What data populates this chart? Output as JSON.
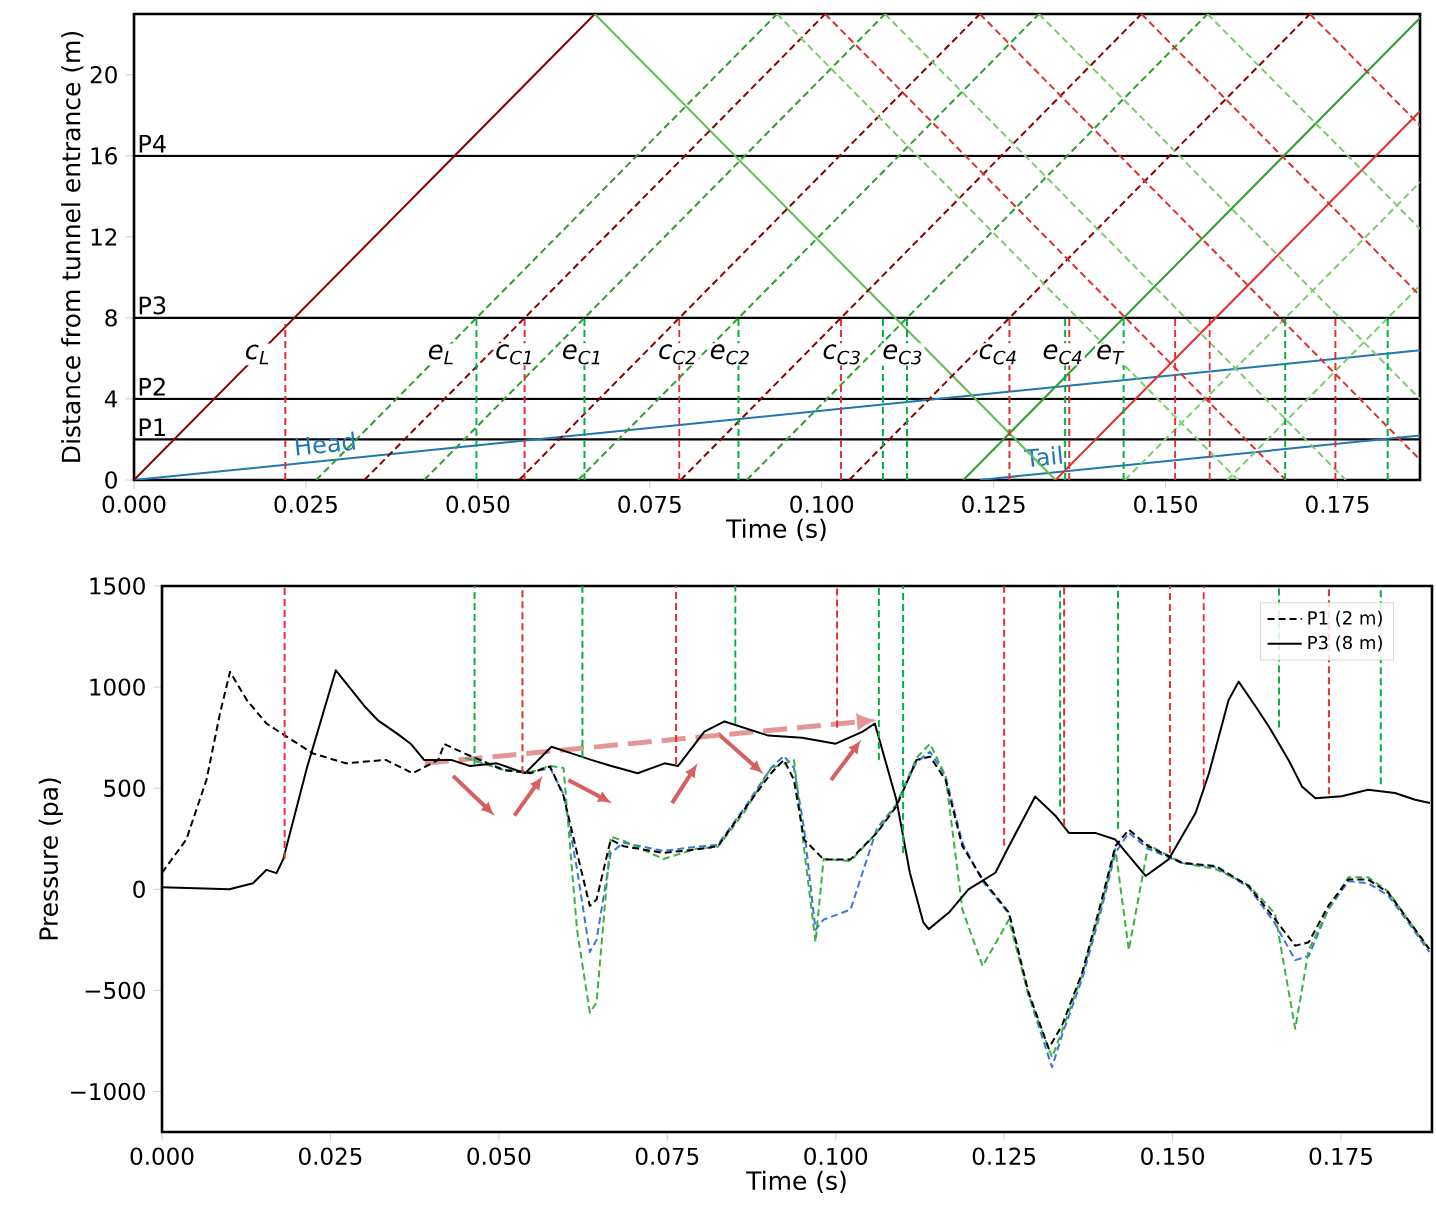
{
  "chart_data": [
    {
      "type": "line",
      "xlabel": "Time (s)",
      "ylabel": "Distance from tunnel entrance (m)",
      "xlim": [
        0,
        0.187
      ],
      "ylim": [
        0,
        23
      ],
      "xticks": [
        {
          "value": 0,
          "label": "0.000"
        },
        {
          "value": 0.025,
          "label": "0.025"
        },
        {
          "value": 0.05,
          "label": "0.050"
        },
        {
          "value": 0.075,
          "label": "0.075"
        },
        {
          "value": 0.1,
          "label": "0.100"
        },
        {
          "value": 0.125,
          "label": "0.125"
        },
        {
          "value": 0.15,
          "label": "0.150"
        },
        {
          "value": 0.175,
          "label": "0.175"
        }
      ],
      "yticks": [
        0,
        4,
        8,
        12,
        16,
        20
      ],
      "ref_lines": [
        {
          "axis": "y",
          "value": 2,
          "label": "P1",
          "color": "#000000"
        },
        {
          "axis": "y",
          "value": 4,
          "label": "P2",
          "color": "#000000"
        },
        {
          "axis": "y",
          "value": 8,
          "label": "P3",
          "color": "#000000"
        },
        {
          "axis": "y",
          "value": 16,
          "label": "P4",
          "color": "#000000"
        }
      ],
      "annotations": [
        "c$_{L}$",
        "e$_{L}$",
        "c$_{C1}$",
        "e$_{C1}$",
        "c$_{C2}$",
        "e$_{C2}$",
        "c$_{C3}$",
        "e$_{C3}$",
        "c$_{C4}$",
        "e$_{C4}$",
        "e$_{T}$"
      ],
      "series": [
        {
          "name": "Head",
          "color": "#1f77b4",
          "line_style": "solid",
          "x": [
            0,
            0.187
          ],
          "values": [
            0,
            6.4
          ]
        },
        {
          "name": "Tail",
          "color": "#1f77b4",
          "line_style": "solid",
          "x": [
            0.123,
            0.187
          ],
          "values": [
            0,
            2.2
          ]
        },
        {
          "color": "#8b0000",
          "line_style": "solid",
          "x": [
            0,
            0.067
          ],
          "values": [
            0,
            23
          ]
        },
        {
          "color": "#5cbf4f",
          "line_style": "solid",
          "x": [
            0.067,
            0.134
          ],
          "values": [
            23,
            0
          ]
        },
        {
          "color": "#2e9e2e",
          "line_style": "solid",
          "x": [
            0.1206,
            0.187
          ],
          "values": [
            0,
            22.8
          ]
        },
        {
          "color": "#e03030",
          "line_style": "solid",
          "x": [
            0.134,
            0.187
          ],
          "values": [
            0,
            18.2
          ]
        },
        {
          "color": "#2ca02c",
          "line_style": "dashed",
          "x": [
            0.0265,
            0.0935
          ],
          "values": [
            0,
            23
          ]
        },
        {
          "color": "#2ca02c",
          "line_style": "dashed",
          "x": [
            0.0422,
            0.1092
          ],
          "values": [
            0,
            23
          ]
        },
        {
          "color": "#2ca02c",
          "line_style": "dashed",
          "x": [
            0.0646,
            0.1316
          ],
          "values": [
            0,
            23
          ]
        },
        {
          "color": "#2ca02c",
          "line_style": "dashed",
          "x": [
            0.0891,
            0.1561
          ],
          "values": [
            0,
            23
          ]
        },
        {
          "color": "#8b0000",
          "line_style": "dashed",
          "x": [
            0.0335,
            0.1005
          ],
          "values": [
            0,
            23
          ]
        },
        {
          "color": "#8b0000",
          "line_style": "dashed",
          "x": [
            0.056,
            0.123
          ],
          "values": [
            0,
            23
          ]
        },
        {
          "color": "#8b0000",
          "line_style": "dashed",
          "x": [
            0.0795,
            0.1465
          ],
          "values": [
            0,
            23
          ]
        },
        {
          "color": "#8b0000",
          "line_style": "dashed",
          "x": [
            0.104,
            0.171
          ],
          "values": [
            0,
            23
          ]
        },
        {
          "color": "#7ccd6c",
          "line_style": "dashed",
          "x": [
            0.1441,
            0.187
          ],
          "values": [
            0,
            14.7
          ]
        },
        {
          "color": "#7ccd6c",
          "line_style": "dashed",
          "x": [
            0.159,
            0.187
          ],
          "values": [
            0,
            9.6
          ]
        },
        {
          "color": "#7ccd6c",
          "line_style": "dashed",
          "x": [
            0.0935,
            0.1605
          ],
          "values": [
            23,
            0
          ]
        },
        {
          "color": "#7ccd6c",
          "line_style": "dashed",
          "x": [
            0.1092,
            0.1762
          ],
          "values": [
            23,
            0
          ]
        },
        {
          "color": "#7ccd6c",
          "line_style": "dashed",
          "x": [
            0.1316,
            0.187
          ],
          "values": [
            23,
            4.0
          ]
        },
        {
          "color": "#7ccd6c",
          "line_style": "dashed",
          "x": [
            0.1561,
            0.187
          ],
          "values": [
            23,
            12.4
          ]
        },
        {
          "color": "#e03030",
          "line_style": "dashed",
          "x": [
            0.1005,
            0.1675
          ],
          "values": [
            23,
            0
          ]
        },
        {
          "color": "#e03030",
          "line_style": "dashed",
          "x": [
            0.123,
            0.187
          ],
          "values": [
            23,
            1.0
          ]
        },
        {
          "color": "#e03030",
          "line_style": "dashed",
          "x": [
            0.1465,
            0.187
          ],
          "values": [
            23,
            9.1
          ]
        },
        {
          "color": "#e03030",
          "line_style": "dashed",
          "x": [
            0.171,
            0.187
          ],
          "values": [
            23,
            17.5
          ]
        },
        {
          "color": "#e03030",
          "line_style": "dashed",
          "x": [
            0.022,
            0.022
          ],
          "values": [
            0,
            7.7
          ]
        },
        {
          "color": "#e03030",
          "line_style": "dashed",
          "x": [
            0.0568,
            0.0568
          ],
          "values": [
            0,
            8
          ]
        },
        {
          "color": "#e03030",
          "line_style": "dashed",
          "x": [
            0.0793,
            0.0793
          ],
          "values": [
            0,
            8
          ]
        },
        {
          "color": "#e03030",
          "line_style": "dashed",
          "x": [
            0.1028,
            0.1028
          ],
          "values": [
            0,
            8
          ]
        },
        {
          "color": "#e03030",
          "line_style": "dashed",
          "x": [
            0.1273,
            0.1273
          ],
          "values": [
            0,
            8
          ]
        },
        {
          "color": "#e03030",
          "line_style": "dashed",
          "x": [
            0.136,
            0.136
          ],
          "values": [
            0,
            8
          ]
        },
        {
          "color": "#e03030",
          "line_style": "dashed",
          "x": [
            0.1514,
            0.1514
          ],
          "values": [
            0,
            8
          ]
        },
        {
          "color": "#e03030",
          "line_style": "dashed",
          "x": [
            0.1564,
            0.1564
          ],
          "values": [
            0,
            8
          ]
        },
        {
          "color": "#e03030",
          "line_style": "dashed",
          "x": [
            0.1747,
            0.1747
          ],
          "values": [
            0,
            8
          ]
        },
        {
          "color": "#00b040",
          "line_style": "dashed",
          "x": [
            0.0498,
            0.0498
          ],
          "values": [
            0,
            8
          ]
        },
        {
          "color": "#00b040",
          "line_style": "dashed",
          "x": [
            0.0655,
            0.0655
          ],
          "values": [
            0,
            8
          ]
        },
        {
          "color": "#00b040",
          "line_style": "dashed",
          "x": [
            0.0879,
            0.0879
          ],
          "values": [
            0,
            8
          ]
        },
        {
          "color": "#00b040",
          "line_style": "dashed",
          "x": [
            0.1089,
            0.1089
          ],
          "values": [
            0,
            8
          ]
        },
        {
          "color": "#00b040",
          "line_style": "dashed",
          "x": [
            0.1124,
            0.1124
          ],
          "values": [
            0,
            8
          ]
        },
        {
          "color": "#00b040",
          "line_style": "dashed",
          "x": [
            0.1354,
            0.1354
          ],
          "values": [
            0,
            8
          ]
        },
        {
          "color": "#00b040",
          "line_style": "dashed",
          "x": [
            0.1439,
            0.1439
          ],
          "values": [
            0,
            8
          ]
        },
        {
          "color": "#00b040",
          "line_style": "dashed",
          "x": [
            0.1674,
            0.1674
          ],
          "values": [
            0,
            8
          ]
        },
        {
          "color": "#00b040",
          "line_style": "dashed",
          "x": [
            0.1823,
            0.1823
          ],
          "values": [
            0,
            8
          ]
        }
      ]
    },
    {
      "type": "line",
      "xlabel": "Time (s)",
      "ylabel": "Pressure (pa)",
      "xlim": [
        0,
        0.1885
      ],
      "ylim": [
        -1200,
        1500
      ],
      "legend": "top right",
      "xticks": [
        {
          "value": 0,
          "label": "0.000"
        },
        {
          "value": 0.025,
          "label": "0.025"
        },
        {
          "value": 0.05,
          "label": "0.050"
        },
        {
          "value": 0.075,
          "label": "0.075"
        },
        {
          "value": 0.1,
          "label": "0.100"
        },
        {
          "value": 0.125,
          "label": "0.125"
        },
        {
          "value": 0.15,
          "label": "0.150"
        },
        {
          "value": 0.175,
          "label": "0.175"
        }
      ],
      "yticks": [
        {
          "value": -1000,
          "label": "−1000"
        },
        {
          "value": -500,
          "label": "−500"
        },
        0,
        500,
        1000,
        1500
      ],
      "series": [
        {
          "color": "#3a78d8",
          "line_style": "dashed",
          "x": [
            0.045,
            0.0507,
            0.0547,
            0.0576,
            0.0596,
            0.0616,
            0.0635,
            0.0645,
            0.0666,
            0.0685,
            0.0744,
            0.0793,
            0.0825,
            0.0864,
            0.0904,
            0.0923,
            0.0938,
            0.0953,
            0.097,
            0.0982,
            0.1022,
            0.1061,
            0.109,
            0.112,
            0.114,
            0.1163,
            0.1188,
            0.1218,
            0.1257,
            0.1286,
            0.1321,
            0.1336,
            0.1366,
            0.1395,
            0.1415,
            0.1435,
            0.1464,
            0.1514,
            0.1564,
            0.1613,
            0.1652,
            0.1682,
            0.1702,
            0.1731,
            0.1761,
            0.179,
            0.182,
            0.1849,
            0.1881
          ],
          "values": [
            670,
            590,
            580,
            600,
            470,
            100,
            -310,
            -250,
            180,
            230,
            190,
            210,
            220,
            400,
            600,
            660,
            600,
            300,
            -200,
            -150,
            -100,
            300,
            420,
            630,
            680,
            560,
            230,
            40,
            -120,
            -520,
            -880,
            -720,
            -440,
            -90,
            180,
            280,
            200,
            130,
            110,
            10,
            -170,
            -350,
            -330,
            -100,
            40,
            30,
            -30,
            -160,
            -310
          ]
        },
        {
          "color": "#3cb043",
          "line_style": "dashed",
          "x": [
            0.045,
            0.0507,
            0.0547,
            0.0576,
            0.0596,
            0.0616,
            0.0635,
            0.0645,
            0.0666,
            0.0685,
            0.0744,
            0.0793,
            0.0825,
            0.0864,
            0.0904,
            0.0923,
            0.0938,
            0.0953,
            0.097,
            0.0982,
            0.1022,
            0.1061,
            0.109,
            0.112,
            0.114,
            0.1163,
            0.1188,
            0.1218,
            0.1257,
            0.1286,
            0.1321,
            0.1336,
            0.1366,
            0.1395,
            0.1415,
            0.1435,
            0.1464,
            0.1514,
            0.1564,
            0.1613,
            0.1652,
            0.1682,
            0.1702,
            0.1731,
            0.1761,
            0.179,
            0.182,
            0.1849,
            0.1881
          ],
          "values": [
            650,
            590,
            580,
            610,
            600,
            -200,
            -610,
            -560,
            260,
            240,
            150,
            200,
            210,
            380,
            600,
            620,
            640,
            200,
            -260,
            150,
            140,
            280,
            420,
            650,
            720,
            560,
            -100,
            -380,
            -150,
            -520,
            -830,
            -700,
            -420,
            -70,
            200,
            -300,
            220,
            130,
            100,
            20,
            -120,
            -690,
            -300,
            -100,
            60,
            60,
            -10,
            -150,
            -300
          ]
        },
        {
          "name": "P1 (2 m)",
          "color": "#000000",
          "line_style": "dashed",
          "x": [
            0,
            0.0036,
            0.0066,
            0.0086,
            0.0101,
            0.0126,
            0.0155,
            0.0185,
            0.0224,
            0.0273,
            0.0332,
            0.0372,
            0.041,
            0.0419,
            0.0449,
            0.0507,
            0.0547,
            0.0576,
            0.0596,
            0.0616,
            0.0635,
            0.0645,
            0.0666,
            0.0685,
            0.0744,
            0.0793,
            0.0825,
            0.0864,
            0.0904,
            0.0923,
            0.0938,
            0.0953,
            0.0982,
            0.1022,
            0.1061,
            0.109,
            0.112,
            0.114,
            0.1163,
            0.1188,
            0.1218,
            0.1257,
            0.1286,
            0.1316,
            0.1336,
            0.1366,
            0.1395,
            0.1415,
            0.1435,
            0.1464,
            0.1514,
            0.1564,
            0.1613,
            0.1652,
            0.1682,
            0.1702,
            0.1731,
            0.1761,
            0.179,
            0.182,
            0.1849,
            0.1881
          ],
          "values": [
            82,
            246,
            541,
            869,
            1076,
            935,
            820,
            755,
            672,
            623,
            640,
            574,
            640,
            718,
            672,
            590,
            574,
            608,
            462,
            180,
            -82,
            -50,
            246,
            213,
            180,
            197,
            213,
            394,
            574,
            640,
            541,
            246,
            148,
            148,
            279,
            410,
            640,
            656,
            541,
            213,
            49,
            -115,
            -508,
            -787,
            -672,
            -410,
            -49,
            213,
            295,
            213,
            131,
            115,
            16,
            -148,
            -279,
            -262,
            -82,
            49,
            49,
            -16,
            -148,
            -295
          ]
        },
        {
          "name": "P3 (8 m)",
          "color": "#000000",
          "line_style": "solid",
          "x": [
            0,
            0.01,
            0.0135,
            0.0155,
            0.017,
            0.018,
            0.0215,
            0.0258,
            0.0302,
            0.032,
            0.0349,
            0.0369,
            0.0389,
            0.0429,
            0.0457,
            0.0497,
            0.0539,
            0.0578,
            0.0608,
            0.0637,
            0.0667,
            0.0706,
            0.0746,
            0.0766,
            0.0805,
            0.0835,
            0.09,
            0.095,
            0.1,
            0.104,
            0.1058,
            0.109,
            0.111,
            0.113,
            0.1138,
            0.1168,
            0.1197,
            0.1237,
            0.1257,
            0.1296,
            0.1326,
            0.1346,
            0.1385,
            0.1415,
            0.146,
            0.1494,
            0.1534,
            0.1554,
            0.1583,
            0.1598,
            0.1623,
            0.1643,
            0.1672,
            0.1692,
            0.1712,
            0.1751,
            0.179,
            0.183,
            0.186,
            0.1882
          ],
          "values": [
            10,
            0,
            30,
            96,
            80,
            150,
            600,
            1083,
            900,
            837,
            770,
            720,
            640,
            640,
            610,
            623,
            574,
            705,
            672,
            640,
            610,
            574,
            623,
            610,
            780,
            830,
            760,
            750,
            720,
            780,
            820,
            443,
            82,
            -164,
            -197,
            -115,
            0,
            82,
            213,
            459,
            364,
            279,
            279,
            246,
            66,
            148,
            377,
            574,
            935,
            1027,
            905,
            804,
            640,
            509,
            450,
            460,
            492,
            476,
            443,
            427
          ]
        },
        {
          "color": "#e03030",
          "line_style": "dashed",
          "x": [
            0.0182,
            0.0182
          ],
          "values": [
            150,
            1500
          ]
        },
        {
          "color": "#e03030",
          "line_style": "dashed",
          "x": [
            0.0535,
            0.0535
          ],
          "values": [
            574,
            1500
          ]
        },
        {
          "color": "#e03030",
          "line_style": "dashed",
          "x": [
            0.0763,
            0.0763
          ],
          "values": [
            620,
            1500
          ]
        },
        {
          "color": "#e03030",
          "line_style": "dashed",
          "x": [
            0.1002,
            0.1002
          ],
          "values": [
            800,
            1500
          ]
        },
        {
          "color": "#e03030",
          "line_style": "dashed",
          "x": [
            0.125,
            0.125
          ],
          "values": [
            215,
            1500
          ]
        },
        {
          "color": "#e03030",
          "line_style": "dashed",
          "x": [
            0.1339,
            0.1339
          ],
          "values": [
            315,
            1500
          ]
        },
        {
          "color": "#e03030",
          "line_style": "dashed",
          "x": [
            0.1496,
            0.1496
          ],
          "values": [
            180,
            1500
          ]
        },
        {
          "color": "#e03030",
          "line_style": "dashed",
          "x": [
            0.1546,
            0.1546
          ],
          "values": [
            510,
            1500
          ]
        },
        {
          "color": "#e03030",
          "line_style": "dashed",
          "x": [
            0.1732,
            0.1732
          ],
          "values": [
            470,
            1500
          ]
        },
        {
          "color": "#00b040",
          "line_style": "dashed",
          "x": [
            0.0464,
            0.0464
          ],
          "values": [
            620,
            1500
          ]
        },
        {
          "color": "#00b040",
          "line_style": "dashed",
          "x": [
            0.0624,
            0.0624
          ],
          "values": [
            650,
            1500
          ]
        },
        {
          "color": "#00b040",
          "line_style": "dashed",
          "x": [
            0.0851,
            0.0851
          ],
          "values": [
            820,
            1500
          ]
        },
        {
          "color": "#00b040",
          "line_style": "dashed",
          "x": [
            0.1064,
            0.1064
          ],
          "values": [
            640,
            1500
          ]
        },
        {
          "color": "#00b040",
          "line_style": "dashed",
          "x": [
            0.11,
            0.11
          ],
          "values": [
            180,
            1500
          ]
        },
        {
          "color": "#00b040",
          "line_style": "dashed",
          "x": [
            0.1333,
            0.1333
          ],
          "values": [
            410,
            1500
          ]
        },
        {
          "color": "#00b040",
          "line_style": "dashed",
          "x": [
            0.1419,
            0.1419
          ],
          "values": [
            300,
            1500
          ]
        },
        {
          "color": "#00b040",
          "line_style": "dashed",
          "x": [
            0.1658,
            0.1658
          ],
          "values": [
            800,
            1500
          ]
        },
        {
          "color": "#00b040",
          "line_style": "dashed",
          "x": [
            0.1809,
            0.1809
          ],
          "values": [
            520,
            1500
          ]
        }
      ]
    }
  ]
}
